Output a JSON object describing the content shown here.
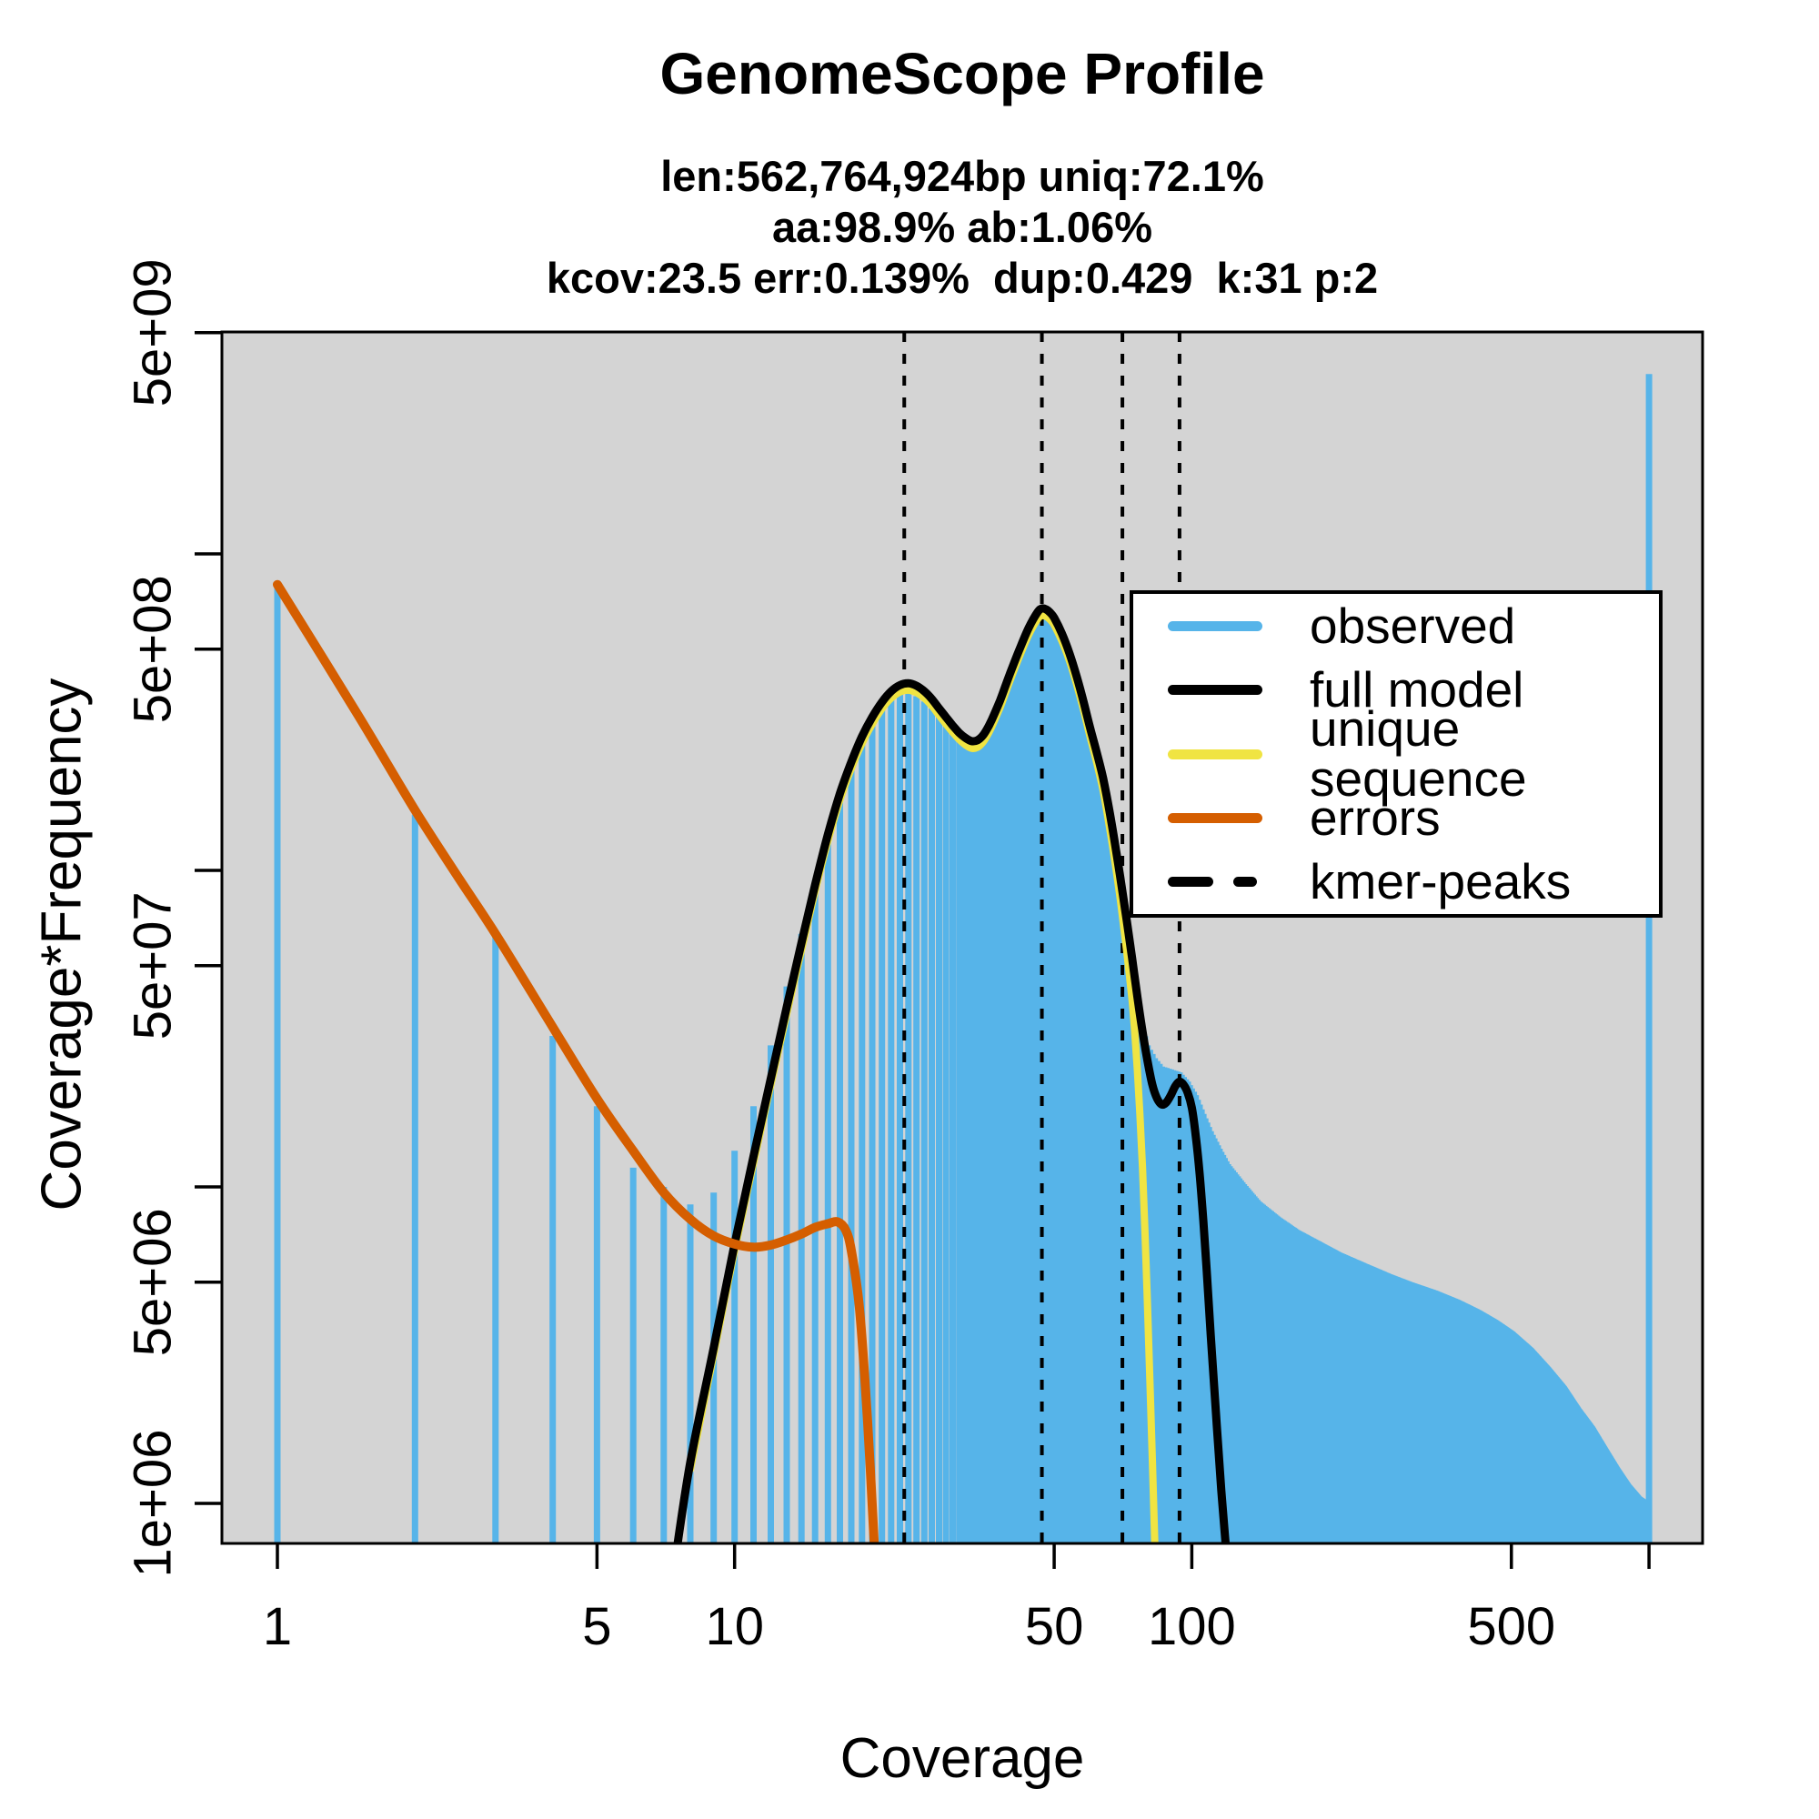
{
  "title": "GenomeScope Profile",
  "subtitle_lines": [
    "len:562,764,924bp uniq:72.1%",
    "aa:98.9% ab:1.06%",
    "kcov:23.5 err:0.139%  dup:0.429  k:31 p:2"
  ],
  "axes": {
    "x_label": "Coverage",
    "y_label": "Coverage*Frequency",
    "x_ticks": [
      {
        "value": 1,
        "label": "1"
      },
      {
        "value": 5,
        "label": "5"
      },
      {
        "value": 10,
        "label": "10"
      },
      {
        "value": 50,
        "label": "50"
      },
      {
        "value": 100,
        "label": "100"
      },
      {
        "value": 500,
        "label": "500"
      },
      {
        "value": 1000,
        "label": ""
      }
    ],
    "y_ticks": [
      {
        "value": 5000000000.0,
        "label": "5e+09"
      },
      {
        "value": 1000000000.0,
        "label": ""
      },
      {
        "value": 500000000.0,
        "label": "5e+08"
      },
      {
        "value": 100000000.0,
        "label": ""
      },
      {
        "value": 50000000.0,
        "label": "5e+07"
      },
      {
        "value": 10000000.0,
        "label": ""
      },
      {
        "value": 5000000.0,
        "label": "5e+06"
      },
      {
        "value": 1000000.0,
        "label": "1e+06"
      }
    ]
  },
  "legend": {
    "entries": [
      {
        "label": "observed",
        "color": "#56B4E9",
        "style": "solid"
      },
      {
        "label": "full model",
        "color": "#000000",
        "style": "solid"
      },
      {
        "label": "unique sequence",
        "color": "#F0E442",
        "style": "solid"
      },
      {
        "label": "errors",
        "color": "#D55E00",
        "style": "solid"
      },
      {
        "label": "kmer-peaks",
        "color": "#000000",
        "style": "dashed"
      }
    ]
  },
  "colors": {
    "panel_bg": "#D4D4D4",
    "observed": "#56B4E9",
    "full_model": "#000000",
    "unique_sequence": "#F0E442",
    "errors": "#D55E00",
    "kmer_peaks": "#000000",
    "axis": "#000000"
  },
  "chart_data": {
    "type": "bar",
    "x_scale": "log",
    "y_scale": "log",
    "xlim": [
      0.75,
      1270
    ],
    "ylim": [
      730000.0,
      5000000000.0
    ],
    "title": "GenomeScope Profile",
    "xlabel": "Coverage",
    "ylabel": "Coverage*Frequency",
    "grid": false,
    "legend_position": "top-right",
    "kmer_peaks": [
      23.5,
      47,
      70.5,
      94
    ],
    "observed_spike": {
      "x": 1000,
      "value": 3700000000.0
    },
    "observed_anchors": {
      "comment_free": "coverage vs coverage*frequency anchor points; bars drawn at every integer coverage by log-log interpolation",
      "x": [
        1,
        2,
        3,
        4,
        5,
        6,
        7,
        8,
        9,
        10,
        11,
        12,
        13,
        14,
        15,
        16,
        17,
        18,
        19,
        20,
        21,
        22,
        23,
        24,
        25,
        26,
        27,
        28,
        29,
        30,
        31,
        32,
        33,
        34,
        35,
        36,
        37,
        38,
        39,
        40,
        42,
        44,
        46,
        47,
        48,
        49,
        50,
        52,
        54,
        56,
        58,
        60,
        62,
        64,
        66,
        68,
        70,
        72,
        74,
        76,
        78,
        80,
        83,
        86,
        90,
        94,
        98,
        102,
        106,
        110,
        115,
        120,
        130,
        140,
        155,
        170,
        190,
        210,
        240,
        270,
        300,
        340,
        380,
        420,
        460,
        500,
        550,
        600,
        650,
        700,
        750,
        800,
        850,
        900,
        950,
        999
      ],
      "v": [
        790000000.0,
        150000000.0,
        62000000.0,
        30000000.0,
        18000000.0,
        11500000.0,
        10000000.0,
        8800000.0,
        9600000.0,
        13000000.0,
        18000000.0,
        28000000.0,
        43000000.0,
        63000000.0,
        93000000.0,
        133000000.0,
        177000000.0,
        220000000.0,
        262000000.0,
        300000000.0,
        330000000.0,
        350000000.0,
        360000000.0,
        362000000.0,
        355000000.0,
        342000000.0,
        325000000.0,
        305000000.0,
        287000000.0,
        270000000.0,
        257000000.0,
        248000000.0,
        243000000.0,
        245000000.0,
        255000000.0,
        272000000.0,
        295000000.0,
        325000000.0,
        360000000.0,
        400000000.0,
        480000000.0,
        560000000.0,
        625000000.0,
        645000000.0,
        642000000.0,
        628000000.0,
        605000000.0,
        540000000.0,
        465000000.0,
        390000000.0,
        325000000.0,
        265000000.0,
        212000000.0,
        168000000.0,
        130000000.0,
        100000000.0,
        78000000.0,
        60000000.0,
        47000000.0,
        38000000.0,
        32000000.0,
        28000000.0,
        25500000.0,
        24000000.0,
        23500000.0,
        23000000.0,
        21500000.0,
        19500000.0,
        17000000.0,
        15000000.0,
        13200000.0,
        11800000.0,
        10200000.0,
        9000000.0,
        8000000.0,
        7300000.0,
        6700000.0,
        6200000.0,
        5700000.0,
        5300000.0,
        5000000.0,
        4700000.0,
        4400000.0,
        4100000.0,
        3800000.0,
        3500000.0,
        3100000.0,
        2700000.0,
        2350000.0,
        2000000.0,
        1750000.0,
        1500000.0,
        1300000.0,
        1150000.0,
        1050000.0,
        1000000.0
      ]
    },
    "series": [
      {
        "name": "full model",
        "points": [
          [
            7.4,
            650000.0
          ],
          [
            8,
            1350000.0
          ],
          [
            9,
            3100000.0
          ],
          [
            10,
            6600000.0
          ],
          [
            11,
            12500000.0
          ],
          [
            12,
            22000000.0
          ],
          [
            13,
            37000000.0
          ],
          [
            14,
            59000000.0
          ],
          [
            15,
            90000000.0
          ],
          [
            16,
            130000000.0
          ],
          [
            17,
            175000000.0
          ],
          [
            18,
            220000000.0
          ],
          [
            19,
            265000000.0
          ],
          [
            20,
            305000000.0
          ],
          [
            21,
            340000000.0
          ],
          [
            22,
            368000000.0
          ],
          [
            23,
            385000000.0
          ],
          [
            24,
            390000000.0
          ],
          [
            25,
            383000000.0
          ],
          [
            26,
            368000000.0
          ],
          [
            27,
            348000000.0
          ],
          [
            28,
            325000000.0
          ],
          [
            29,
            305000000.0
          ],
          [
            30,
            287000000.0
          ],
          [
            31,
            272000000.0
          ],
          [
            32,
            262000000.0
          ],
          [
            33,
            256000000.0
          ],
          [
            34,
            258000000.0
          ],
          [
            35,
            268000000.0
          ],
          [
            36,
            287000000.0
          ],
          [
            37,
            312000000.0
          ],
          [
            38,
            342000000.0
          ],
          [
            39,
            378000000.0
          ],
          [
            40,
            418000000.0
          ],
          [
            42,
            500000000.0
          ],
          [
            44,
            585000000.0
          ],
          [
            46,
            655000000.0
          ],
          [
            47,
            672000000.0
          ],
          [
            48,
            668000000.0
          ],
          [
            49,
            652000000.0
          ],
          [
            50,
            628000000.0
          ],
          [
            52,
            560000000.0
          ],
          [
            54,
            485000000.0
          ],
          [
            56,
            410000000.0
          ],
          [
            58,
            340000000.0
          ],
          [
            60,
            280000000.0
          ],
          [
            62,
            235000000.0
          ],
          [
            64,
            195000000.0
          ],
          [
            66,
            155000000.0
          ],
          [
            68,
            120000000.0
          ],
          [
            70,
            92000000.0
          ],
          [
            72,
            70000000.0
          ],
          [
            74,
            53000000.0
          ],
          [
            76,
            40000000.0
          ],
          [
            78,
            31000000.0
          ],
          [
            80,
            25000000.0
          ],
          [
            82,
            21000000.0
          ],
          [
            84,
            19000000.0
          ],
          [
            86,
            18200000.0
          ],
          [
            88,
            18500000.0
          ],
          [
            90,
            19500000.0
          ],
          [
            92,
            20800000.0
          ],
          [
            94,
            21500000.0
          ],
          [
            96,
            21000000.0
          ],
          [
            98,
            19800000.0
          ],
          [
            100,
            17800000.0
          ],
          [
            102,
            14500000.0
          ],
          [
            104,
            11000000.0
          ],
          [
            106,
            7800000.0
          ],
          [
            108,
            5200000.0
          ],
          [
            110,
            3400000.0
          ],
          [
            113,
            1900000.0
          ],
          [
            116,
            1100000.0
          ],
          [
            119,
            700000.0
          ],
          [
            122,
            450000.0
          ]
        ]
      },
      {
        "name": "unique sequence",
        "points": [
          [
            8,
            1280000.0
          ],
          [
            9,
            2950000.0
          ],
          [
            10,
            6300000.0
          ],
          [
            11,
            11900000.0
          ],
          [
            12,
            21000000.0
          ],
          [
            13,
            35200000.0
          ],
          [
            14,
            56000000.0
          ],
          [
            15,
            86000000.0
          ],
          [
            16,
            124000000.0
          ],
          [
            17,
            167000000.0
          ],
          [
            18,
            210000000.0
          ],
          [
            19,
            252000000.0
          ],
          [
            20,
            290000000.0
          ],
          [
            21,
            324000000.0
          ],
          [
            22,
            350000000.0
          ],
          [
            23,
            366000000.0
          ],
          [
            24,
            371000000.0
          ],
          [
            25,
            364000000.0
          ],
          [
            26,
            350000000.0
          ],
          [
            27,
            331000000.0
          ],
          [
            28,
            309000000.0
          ],
          [
            29,
            290000000.0
          ],
          [
            30,
            273000000.0
          ],
          [
            31,
            259000000.0
          ],
          [
            32,
            249000000.0
          ],
          [
            33,
            243000000.0
          ],
          [
            34,
            245000000.0
          ],
          [
            35,
            255000000.0
          ],
          [
            36,
            273000000.0
          ],
          [
            37,
            297000000.0
          ],
          [
            38,
            325000000.0
          ],
          [
            39,
            359000000.0
          ],
          [
            40,
            397000000.0
          ],
          [
            42,
            475000000.0
          ],
          [
            44,
            556000000.0
          ],
          [
            46,
            622000000.0
          ],
          [
            47,
            638000000.0
          ],
          [
            48,
            634000000.0
          ],
          [
            49,
            619000000.0
          ],
          [
            50,
            596000000.0
          ],
          [
            52,
            530000000.0
          ],
          [
            54,
            459000000.0
          ],
          [
            56,
            387000000.0
          ],
          [
            58,
            320000000.0
          ],
          [
            60,
            262000000.0
          ],
          [
            62,
            218000000.0
          ],
          [
            64,
            178000000.0
          ],
          [
            66,
            138000000.0
          ],
          [
            68,
            105000000.0
          ],
          [
            70,
            78000000.0
          ],
          [
            72,
            56000000.0
          ],
          [
            74,
            39000000.0
          ],
          [
            75,
            31000000.0
          ],
          [
            76,
            23500000.0
          ],
          [
            77,
            17000000.0
          ],
          [
            78,
            11500000.0
          ],
          [
            79,
            7200000.0
          ],
          [
            80,
            4200000.0
          ],
          [
            81,
            2400000.0
          ],
          [
            82,
            1350000.0
          ],
          [
            83,
            750000.0
          ],
          [
            84,
            450000.0
          ]
        ]
      },
      {
        "name": "errors",
        "points": [
          [
            1,
            800000000.0
          ],
          [
            1.5,
            310000000.0
          ],
          [
            2,
            155000000.0
          ],
          [
            2.5,
            94000000.0
          ],
          [
            3,
            63000000.0
          ],
          [
            4,
            32000000.0
          ],
          [
            5,
            19000000.0
          ],
          [
            6,
            13000000.0
          ],
          [
            7,
            9600000.0
          ],
          [
            8,
            7900000.0
          ],
          [
            9,
            7000000.0
          ],
          [
            10,
            6600000.0
          ],
          [
            11,
            6450000.0
          ],
          [
            12,
            6550000.0
          ],
          [
            13,
            6800000.0
          ],
          [
            14,
            7100000.0
          ],
          [
            15,
            7450000.0
          ],
          [
            16,
            7650000.0
          ],
          [
            16.8,
            7750000.0
          ],
          [
            17.5,
            7300000.0
          ],
          [
            18,
            6300000.0
          ],
          [
            18.7,
            4300000.0
          ],
          [
            19.3,
            2400000.0
          ],
          [
            19.8,
            1300000.0
          ],
          [
            20.2,
            750000.0
          ],
          [
            20.6,
            450000.0
          ]
        ]
      }
    ]
  }
}
